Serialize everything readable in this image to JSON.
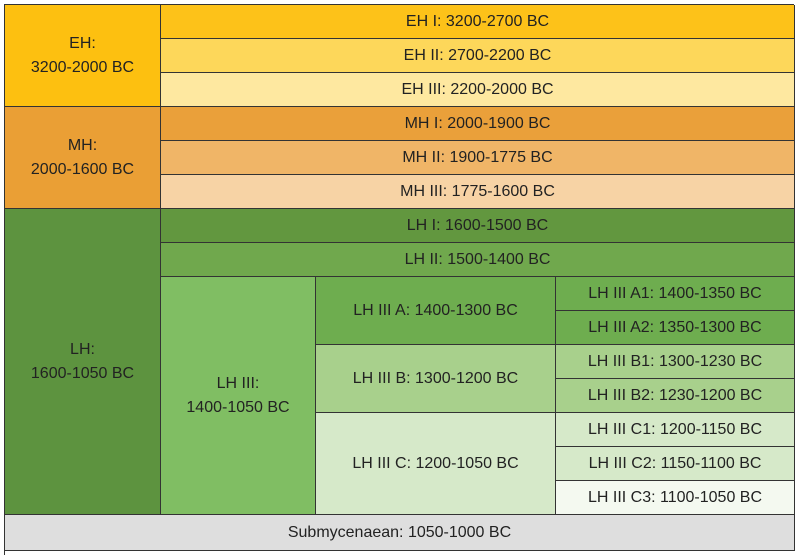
{
  "colors": {
    "eh": "#fdc010",
    "eh1": "#fdc219",
    "eh2": "#fdd75a",
    "eh3": "#fee8a0",
    "mh": "#ea9f35",
    "mh1": "#eaa03a",
    "mh2": "#f0b567",
    "mh3": "#f7d3a5",
    "lh": "#5d933f",
    "lh1": "#62973f",
    "lh2": "#70a84d",
    "lh3": "#80be63",
    "lh3a": "#6ead4f",
    "lh3b": "#a8d08c",
    "lh3c": "#d6e9c9",
    "lh3a_sub": "#6ead4f",
    "lh3b_sub": "#a8d08c",
    "lh3c12_sub": "#d6e9c9",
    "lh3c3_sub": "#f4f9f0",
    "sub": "#dedede"
  },
  "eh": {
    "name": "EH:",
    "dates": "3200-2000 BC"
  },
  "eh_1": "EH I: 3200-2700 BC",
  "eh_2": "EH II: 2700-2200 BC",
  "eh_3": "EH III: 2200-2000 BC",
  "mh": {
    "name": "MH:",
    "dates": "2000-1600 BC"
  },
  "mh_1": "MH I: 2000-1900 BC",
  "mh_2": "MH II: 1900-1775 BC",
  "mh_3": "MH III: 1775-1600 BC",
  "lh": {
    "name": "LH:",
    "dates": "1600-1050 BC"
  },
  "lh_1": "LH I: 1600-1500 BC",
  "lh_2": "LH II: 1500-1400 BC",
  "lh_3": {
    "name": "LH III:",
    "dates": "1400-1050 BC"
  },
  "lh_3a": "LH III A: 1400-1300 BC",
  "lh_3b": "LH III B: 1300-1200 BC",
  "lh_3c": "LH III C: 1200-1050 BC",
  "lh_3a1": "LH III A1: 1400-1350 BC",
  "lh_3a2": "LH III A2: 1350-1300 BC",
  "lh_3b1": "LH III B1: 1300-1230 BC",
  "lh_3b2": "LH III B2: 1230-1200 BC",
  "lh_3c1": "LH III C1: 1200-1150 BC",
  "lh_3c2": "LH III C2: 1150-1100 BC",
  "lh_3c3": "LH III C3: 1100-1050 BC",
  "submycenaean": "Submycenaean: 1050-1000 BC"
}
